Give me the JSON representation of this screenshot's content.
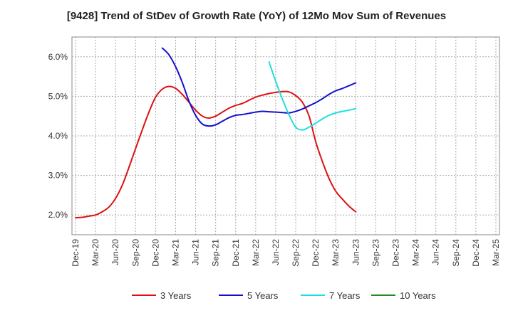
{
  "chart_data": {
    "type": "line",
    "title": "[9428]  Trend of StDev of Growth Rate (YoY) of 12Mo Mov Sum of Revenues",
    "xlabel": "",
    "ylabel": "",
    "x_ticks": [
      "Dec-19",
      "Mar-20",
      "Jun-20",
      "Sep-20",
      "Dec-20",
      "Mar-21",
      "Jun-21",
      "Sep-21",
      "Dec-21",
      "Mar-22",
      "Jun-22",
      "Sep-22",
      "Dec-22",
      "Mar-23",
      "Jun-23",
      "Sep-23",
      "Dec-23",
      "Mar-24",
      "Jun-24",
      "Sep-24",
      "Dec-24",
      "Mar-25"
    ],
    "y_ticks": [
      "2.0%",
      "3.0%",
      "4.0%",
      "5.0%",
      "6.0%"
    ],
    "y_tick_values": [
      2.0,
      3.0,
      4.0,
      5.0,
      6.0
    ],
    "ylim": [
      1.5,
      6.5
    ],
    "grid": true,
    "legend_position": "bottom",
    "series": [
      {
        "name": "3 Years",
        "color": "#dd1111",
        "values": [
          [
            0,
            1.93
          ],
          [
            1,
            1.94
          ],
          [
            2,
            1.97
          ],
          [
            3,
            2.0
          ],
          [
            4,
            2.08
          ],
          [
            5,
            2.2
          ],
          [
            6,
            2.42
          ],
          [
            7,
            2.75
          ],
          [
            8,
            3.2
          ],
          [
            9,
            3.68
          ],
          [
            10,
            4.15
          ],
          [
            11,
            4.6
          ],
          [
            12,
            4.98
          ],
          [
            13,
            5.18
          ],
          [
            14,
            5.25
          ],
          [
            15,
            5.2
          ],
          [
            16,
            5.05
          ],
          [
            17,
            4.85
          ],
          [
            18,
            4.65
          ],
          [
            19,
            4.5
          ],
          [
            20,
            4.45
          ],
          [
            21,
            4.5
          ],
          [
            22,
            4.6
          ],
          [
            23,
            4.7
          ],
          [
            24,
            4.77
          ],
          [
            25,
            4.82
          ],
          [
            26,
            4.9
          ],
          [
            27,
            4.98
          ],
          [
            28,
            5.03
          ],
          [
            29,
            5.07
          ],
          [
            30,
            5.1
          ],
          [
            31,
            5.12
          ],
          [
            32,
            5.11
          ],
          [
            33,
            5.02
          ],
          [
            34,
            4.85
          ],
          [
            35,
            4.5
          ],
          [
            36,
            3.85
          ],
          [
            37,
            3.35
          ],
          [
            38,
            2.92
          ],
          [
            39,
            2.6
          ],
          [
            40,
            2.4
          ],
          [
            41,
            2.22
          ],
          [
            42,
            2.08
          ]
        ]
      },
      {
        "name": "5 Years",
        "color": "#1111cc",
        "values": [
          [
            13,
            6.22
          ],
          [
            14,
            6.05
          ],
          [
            15,
            5.75
          ],
          [
            16,
            5.35
          ],
          [
            17,
            4.88
          ],
          [
            18,
            4.52
          ],
          [
            19,
            4.3
          ],
          [
            20,
            4.25
          ],
          [
            21,
            4.28
          ],
          [
            22,
            4.37
          ],
          [
            23,
            4.46
          ],
          [
            24,
            4.52
          ],
          [
            25,
            4.54
          ],
          [
            26,
            4.57
          ],
          [
            27,
            4.6
          ],
          [
            28,
            4.62
          ],
          [
            29,
            4.61
          ],
          [
            30,
            4.6
          ],
          [
            31,
            4.59
          ],
          [
            32,
            4.58
          ],
          [
            33,
            4.62
          ],
          [
            34,
            4.68
          ],
          [
            35,
            4.76
          ],
          [
            36,
            4.84
          ],
          [
            37,
            4.94
          ],
          [
            38,
            5.05
          ],
          [
            39,
            5.14
          ],
          [
            40,
            5.2
          ],
          [
            41,
            5.27
          ],
          [
            42,
            5.34
          ]
        ]
      },
      {
        "name": "7 Years",
        "color": "#22dddd",
        "values": [
          [
            29,
            5.87
          ],
          [
            30,
            5.38
          ],
          [
            31,
            4.93
          ],
          [
            32,
            4.53
          ],
          [
            33,
            4.22
          ],
          [
            34,
            4.15
          ],
          [
            35,
            4.22
          ],
          [
            36,
            4.32
          ],
          [
            37,
            4.43
          ],
          [
            38,
            4.52
          ],
          [
            39,
            4.58
          ],
          [
            40,
            4.62
          ],
          [
            41,
            4.65
          ],
          [
            42,
            4.69
          ]
        ]
      },
      {
        "name": "10 Years",
        "color": "#228822",
        "values": []
      }
    ]
  }
}
